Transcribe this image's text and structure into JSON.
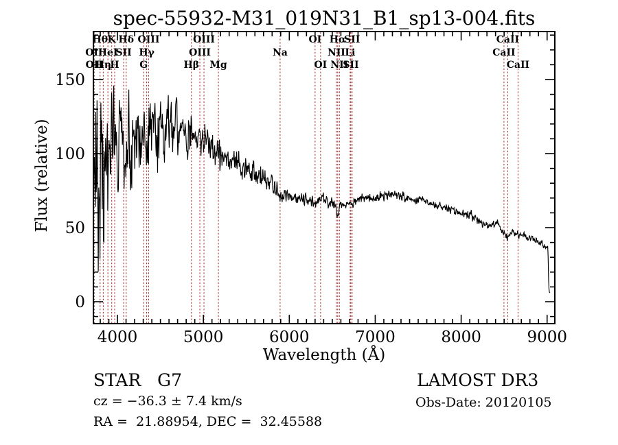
{
  "chart_data": {
    "type": "line",
    "title": "spec-55932-M31_019N31_B1_sp13-004.fits",
    "xlabel": "Wavelength (Å)",
    "ylabel": "Flux (relative)",
    "xlim": [
      3720,
      9090
    ],
    "ylim": [
      -14.8,
      182.4
    ],
    "xticks_major": [
      4000,
      5000,
      6000,
      7000,
      8000,
      9000
    ],
    "xtick_minor_step": 100,
    "yticks_major": [
      0,
      50,
      100,
      150
    ],
    "ytick_minor_step": 10,
    "grid": false,
    "line_color": "#000000",
    "marker_line_color": "#A83838",
    "spectral_lines": [
      {
        "label": "Hθ",
        "wavelength": 3798,
        "row": 1
      },
      {
        "label": "K",
        "wavelength": 3933,
        "row": 1
      },
      {
        "label": "Hδ",
        "wavelength": 4102,
        "row": 1
      },
      {
        "label": "OIII",
        "wavelength": 4363,
        "row": 1
      },
      {
        "label": "OIII",
        "wavelength": 5007,
        "row": 1
      },
      {
        "label": "OI",
        "wavelength": 6300,
        "row": 1
      },
      {
        "label": "Hα",
        "wavelength": 6563,
        "row": 1
      },
      {
        "label": "SII",
        "wavelength": 6731,
        "row": 1
      },
      {
        "label": "CaII",
        "wavelength": 8542,
        "row": 1
      },
      {
        "label": "OII",
        "wavelength": 3727,
        "row": 2
      },
      {
        "label": "HeI",
        "wavelength": 3889,
        "row": 2
      },
      {
        "label": "SII",
        "wavelength": 4072,
        "row": 2
      },
      {
        "label": "Hγ",
        "wavelength": 4340,
        "row": 2
      },
      {
        "label": "OIII",
        "wavelength": 4959,
        "row": 2
      },
      {
        "label": "Na",
        "wavelength": 5893,
        "row": 2
      },
      {
        "label": "NII",
        "wavelength": 6548,
        "row": 2
      },
      {
        "label": "Li",
        "wavelength": 6708,
        "row": 2
      },
      {
        "label": "CaII",
        "wavelength": 8498,
        "row": 2
      },
      {
        "label": "OII",
        "wavelength": 3730,
        "row": 3
      },
      {
        "label": "Hη",
        "wavelength": 3835,
        "row": 3
      },
      {
        "label": "H",
        "wavelength": 3968,
        "row": 3
      },
      {
        "label": "G",
        "wavelength": 4305,
        "row": 3
      },
      {
        "label": "Hβ",
        "wavelength": 4861,
        "row": 3
      },
      {
        "label": "Mg",
        "wavelength": 5175,
        "row": 3
      },
      {
        "label": "OI",
        "wavelength": 6364,
        "row": 3
      },
      {
        "label": "NII",
        "wavelength": 6583,
        "row": 3
      },
      {
        "label": "SII",
        "wavelength": 6716,
        "row": 3
      },
      {
        "label": "CaII",
        "wavelength": 8662,
        "row": 3
      }
    ],
    "trace_model": {
      "seed": 20120105,
      "lambda_start": 3722,
      "lambda_end": 9035,
      "step": 5,
      "clamp": [
        -2,
        182.3
      ],
      "correlation": 0.28,
      "continuum": [
        [
          3720,
          85
        ],
        [
          3760,
          80
        ],
        [
          3800,
          88
        ],
        [
          3850,
          92
        ],
        [
          3900,
          88
        ],
        [
          3950,
          90
        ],
        [
          4000,
          97
        ],
        [
          4060,
          100
        ],
        [
          4120,
          103
        ],
        [
          4200,
          106
        ],
        [
          4300,
          108
        ],
        [
          4400,
          112
        ],
        [
          4500,
          116
        ],
        [
          4600,
          118
        ],
        [
          4700,
          117
        ],
        [
          4800,
          114
        ],
        [
          4900,
          112
        ],
        [
          5000,
          108
        ],
        [
          5100,
          104
        ],
        [
          5200,
          100
        ],
        [
          5300,
          97
        ],
        [
          5400,
          93
        ],
        [
          5500,
          89
        ],
        [
          5600,
          86
        ],
        [
          5700,
          83
        ],
        [
          5800,
          79
        ],
        [
          5870,
          75
        ],
        [
          5893,
          71
        ],
        [
          5920,
          72
        ],
        [
          6000,
          70
        ],
        [
          6100,
          69
        ],
        [
          6200,
          68
        ],
        [
          6300,
          67
        ],
        [
          6400,
          68
        ],
        [
          6500,
          67
        ],
        [
          6540,
          64
        ],
        [
          6563,
          56
        ],
        [
          6590,
          64
        ],
        [
          6650,
          67
        ],
        [
          6750,
          68
        ],
        [
          6850,
          69
        ],
        [
          7000,
          71
        ],
        [
          7100,
          72
        ],
        [
          7250,
          72
        ],
        [
          7400,
          70
        ],
        [
          7550,
          68
        ],
        [
          7700,
          65
        ],
        [
          7850,
          63
        ],
        [
          8000,
          60
        ],
        [
          8100,
          58
        ],
        [
          8200,
          55
        ],
        [
          8280,
          51
        ],
        [
          8350,
          52
        ],
        [
          8420,
          54
        ],
        [
          8470,
          49
        ],
        [
          8500,
          46
        ],
        [
          8550,
          45
        ],
        [
          8620,
          46
        ],
        [
          8662,
          44
        ],
        [
          8720,
          45
        ],
        [
          8800,
          43
        ],
        [
          8900,
          41
        ],
        [
          8960,
          38
        ],
        [
          9000,
          37
        ],
        [
          9008,
          36
        ],
        [
          9014,
          28
        ],
        [
          9018,
          12
        ],
        [
          9024,
          6
        ],
        [
          9035,
          7
        ]
      ],
      "noise_amp": [
        [
          3720,
          55
        ],
        [
          3780,
          58
        ],
        [
          3850,
          52
        ],
        [
          3900,
          48
        ],
        [
          3950,
          45
        ],
        [
          4000,
          40
        ],
        [
          4080,
          36
        ],
        [
          4160,
          32
        ],
        [
          4250,
          28
        ],
        [
          4350,
          25
        ],
        [
          4450,
          23
        ],
        [
          4550,
          21
        ],
        [
          4650,
          19
        ],
        [
          4750,
          17
        ],
        [
          4850,
          16
        ],
        [
          4950,
          14
        ],
        [
          5050,
          13
        ],
        [
          5150,
          12
        ],
        [
          5250,
          11
        ],
        [
          5400,
          10
        ],
        [
          5550,
          9
        ],
        [
          5700,
          8
        ],
        [
          5850,
          6.5
        ],
        [
          5950,
          5.5
        ],
        [
          6050,
          5
        ],
        [
          6200,
          4.5
        ],
        [
          6350,
          4.5
        ],
        [
          6500,
          4.5
        ],
        [
          6563,
          3
        ],
        [
          6650,
          4
        ],
        [
          6800,
          3.8
        ],
        [
          7000,
          3.6
        ],
        [
          7200,
          3.5
        ],
        [
          7400,
          3.2
        ],
        [
          7600,
          3
        ],
        [
          7800,
          3
        ],
        [
          8000,
          3
        ],
        [
          8200,
          3.2
        ],
        [
          8400,
          3
        ],
        [
          8600,
          2.6
        ],
        [
          8800,
          2.6
        ],
        [
          9000,
          2
        ],
        [
          9014,
          1.2
        ],
        [
          9035,
          0.8
        ]
      ]
    }
  },
  "footer": {
    "class_label": "STAR   G7",
    "survey": "LAMOST DR3",
    "cz": "cz = −36.3 ± 7.4 km/s",
    "obs_date": "Obs-Date: 20120105",
    "coords": "RA =  21.88954, DEC =  32.45588"
  }
}
